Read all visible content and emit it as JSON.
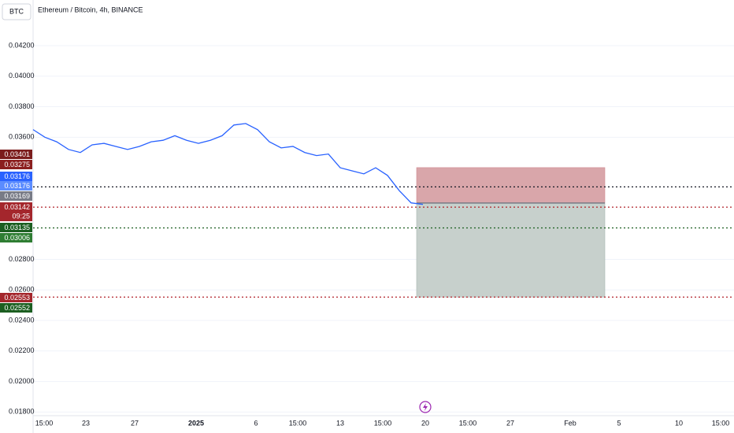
{
  "chart_data": {
    "type": "line",
    "title": "Ethereum / Bitcoin, 4h, BINANCE",
    "symbol": "BTC",
    "ylim": [
      0.0174,
      0.0437
    ],
    "yticks": [
      {
        "value": 0.042,
        "label": "0.04200"
      },
      {
        "value": 0.04,
        "label": "0.04000"
      },
      {
        "value": 0.038,
        "label": "0.03800"
      },
      {
        "value": 0.036,
        "label": "0.03600"
      },
      {
        "value": 0.028,
        "label": "0.02800"
      },
      {
        "value": 0.026,
        "label": "0.02600"
      },
      {
        "value": 0.024,
        "label": "0.02400"
      },
      {
        "value": 0.022,
        "label": "0.02200"
      },
      {
        "value": 0.02,
        "label": "0.02000"
      },
      {
        "value": 0.018,
        "label": "0.01800"
      }
    ],
    "xlabels": [
      "15:00",
      "23",
      "27",
      "2025",
      "6",
      "15:00",
      "13",
      "15:00",
      "20",
      "15:00",
      "27",
      "Feb",
      "5",
      "10",
      "15:00"
    ],
    "grid": true,
    "series": [
      {
        "color": "#2962ff",
        "values": [
          0.0365,
          0.036,
          0.0357,
          0.0352,
          0.035,
          0.0355,
          0.0356,
          0.0354,
          0.0352,
          0.0354,
          0.0357,
          0.0358,
          0.0361,
          0.0358,
          0.0356,
          0.0358,
          0.0361,
          0.0368,
          0.0369,
          0.0365,
          0.0357,
          0.0353,
          0.0354,
          0.035,
          0.0348,
          0.0349,
          0.034,
          0.0338,
          0.0336,
          0.034,
          0.0335,
          0.0325,
          0.0317,
          0.0316
        ]
      }
    ],
    "position": {
      "stop": 0.03401,
      "entry": 0.03169,
      "target": 0.02553,
      "loss_color": "#d9a6aa",
      "profit_color": "#c7d0cc"
    },
    "levels": [
      {
        "value": 0.03275,
        "color": "#131722"
      },
      {
        "value": 0.03142,
        "color": "#b2222a"
      },
      {
        "value": 0.03006,
        "color": "#1b5e20"
      },
      {
        "value": 0.02553,
        "color": "#b2222a"
      }
    ],
    "price_tags": [
      {
        "label": "0.03401",
        "color": "#7b1c1c"
      },
      {
        "label": "0.03275",
        "color": "#8b1f1f"
      },
      {
        "label": "0.03176",
        "color": "#2962ff"
      },
      {
        "label": "0.03176",
        "color": "#5b8cff"
      },
      {
        "label": "0.03169",
        "color": "#787b86"
      },
      {
        "label": "0.03142",
        "sub": "09:25",
        "color": "#a4262c"
      },
      {
        "label": "0.03135",
        "color": "#1b5e20"
      },
      {
        "label": "0.03006",
        "color": "#2e7d32"
      },
      {
        "label": "0.02553",
        "color": "#a4262c"
      },
      {
        "label": "0.02552",
        "color": "#1b5e20"
      }
    ]
  }
}
